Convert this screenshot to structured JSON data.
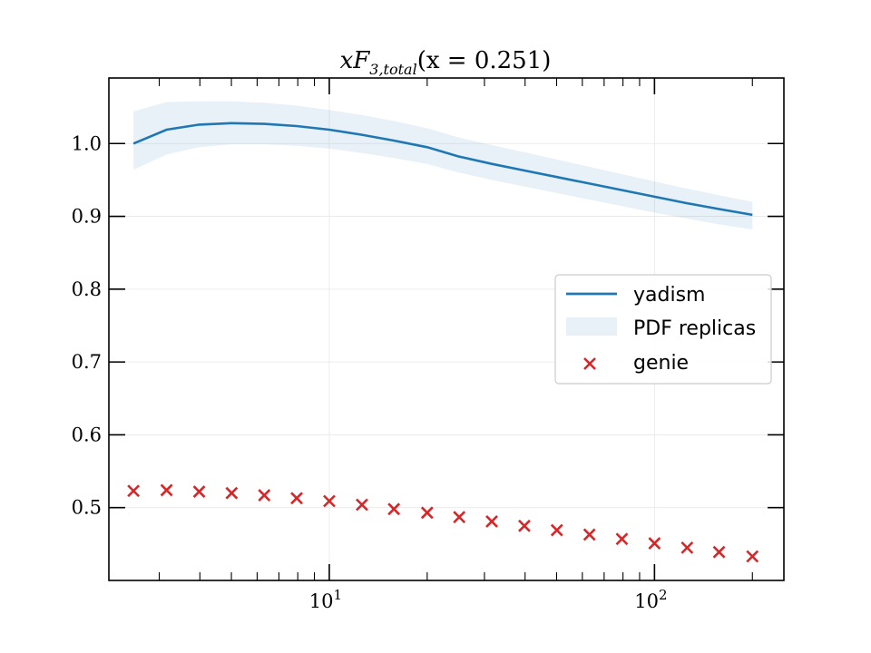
{
  "chart_data": {
    "type": "line",
    "title": "xF3,total(x = 0.251)",
    "title_parts": {
      "main": "xF",
      "sub": "3,total",
      "tail": "(x = 0.251)"
    },
    "xscale": "log",
    "xlim": [
      2.1,
      250
    ],
    "ylim": [
      0.4,
      1.09
    ],
    "xlabel": "",
    "ylabel": "",
    "grid": true,
    "legend_position": "center-right",
    "x": [
      2.5,
      3.16,
      3.98,
      5.01,
      6.31,
      7.94,
      10.0,
      12.6,
      15.8,
      20.0,
      25.1,
      31.6,
      39.8,
      50.1,
      63.1,
      79.4,
      100.0,
      126.0,
      158.0,
      200.0
    ],
    "series": [
      {
        "name": "yadism",
        "kind": "line",
        "color": "#1f77b4",
        "values": [
          1.0,
          1.019,
          1.026,
          1.028,
          1.027,
          1.024,
          1.019,
          1.012,
          1.004,
          0.995,
          0.982,
          0.972,
          0.963,
          0.954,
          0.945,
          0.936,
          0.927,
          0.918,
          0.91,
          0.902
        ]
      },
      {
        "name": "PDF replicas",
        "kind": "band",
        "color": "#1f77b4",
        "upper": [
          1.044,
          1.057,
          1.058,
          1.058,
          1.056,
          1.052,
          1.046,
          1.039,
          1.031,
          1.021,
          1.008,
          0.998,
          0.988,
          0.978,
          0.968,
          0.958,
          0.948,
          0.938,
          0.929,
          0.92
        ],
        "lower": [
          0.964,
          0.985,
          0.995,
          0.999,
          0.999,
          0.997,
          0.993,
          0.987,
          0.98,
          0.972,
          0.96,
          0.95,
          0.941,
          0.932,
          0.923,
          0.914,
          0.905,
          0.897,
          0.889,
          0.882
        ]
      },
      {
        "name": "genie",
        "kind": "marker",
        "color": "#d62728",
        "values": [
          0.523,
          0.524,
          0.522,
          0.52,
          0.517,
          0.513,
          0.509,
          0.504,
          0.498,
          0.493,
          0.487,
          0.481,
          0.475,
          0.469,
          0.463,
          0.457,
          0.451,
          0.445,
          0.439,
          0.433
        ]
      }
    ],
    "y_ticks": [
      {
        "value": 0.5,
        "label": "0.5"
      },
      {
        "value": 0.6,
        "label": "0.6"
      },
      {
        "value": 0.7,
        "label": "0.7"
      },
      {
        "value": 0.8,
        "label": "0.8"
      },
      {
        "value": 0.9,
        "label": "0.9"
      },
      {
        "value": 1.0,
        "label": "1.0"
      }
    ],
    "x_ticks": [
      {
        "value": 10,
        "base": "10",
        "exp": "1"
      },
      {
        "value": 100,
        "base": "10",
        "exp": "2"
      }
    ]
  }
}
